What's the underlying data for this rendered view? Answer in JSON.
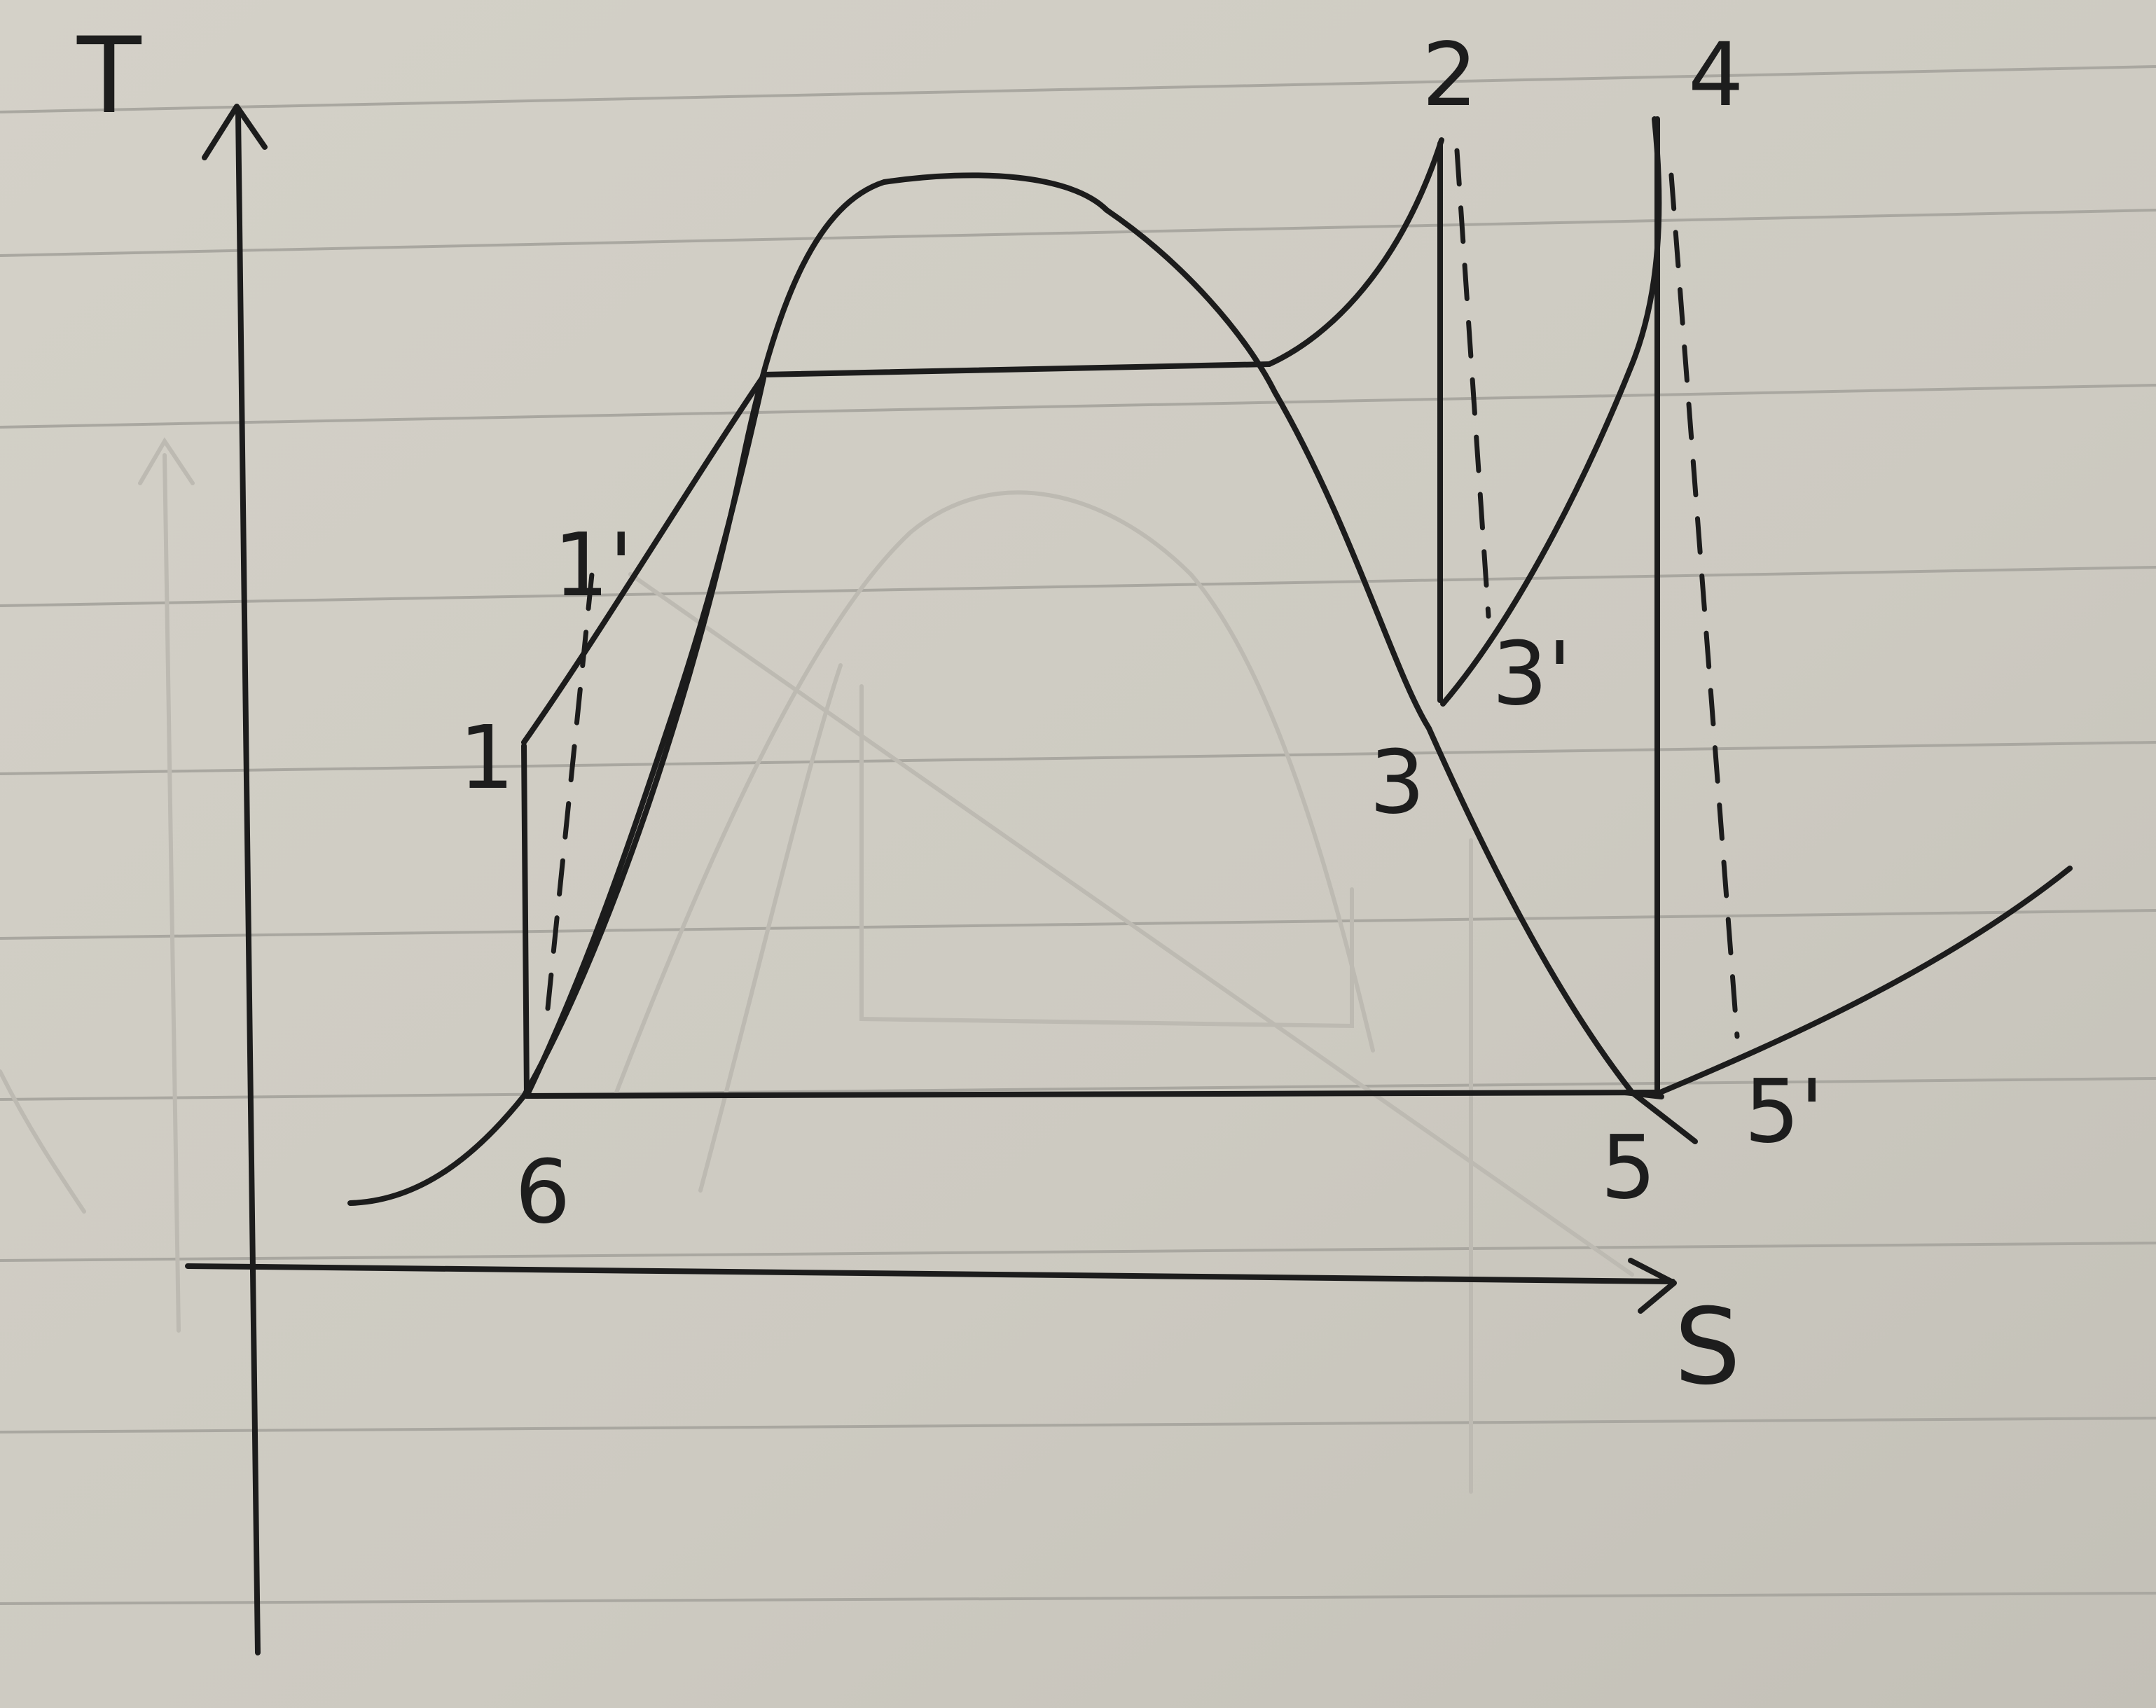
{
  "diagram": {
    "axis_labels": {
      "y": "T",
      "x": "S"
    },
    "state_labels": [
      {
        "id": "1",
        "text": "1"
      },
      {
        "id": "1p",
        "text": "1'"
      },
      {
        "id": "2",
        "text": "2"
      },
      {
        "id": "3",
        "text": "3"
      },
      {
        "id": "3p",
        "text": "3'"
      },
      {
        "id": "4",
        "text": "4"
      },
      {
        "id": "5",
        "text": "5"
      },
      {
        "id": "5p",
        "text": "5'"
      },
      {
        "id": "6",
        "text": "6"
      }
    ],
    "colors": {
      "paper": "#cfccc3",
      "ink": "#1c1c1c",
      "ruled_line": "#a9a7a0",
      "ghost": "#bdbab2"
    }
  }
}
